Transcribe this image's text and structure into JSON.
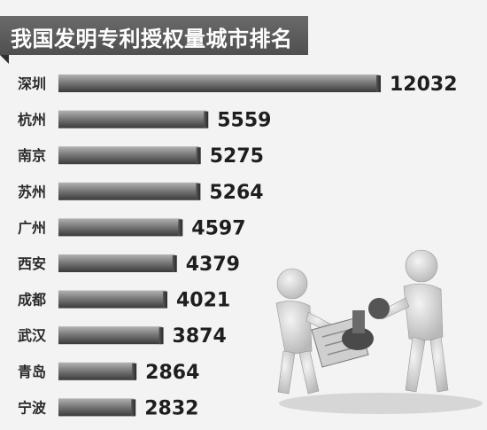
{
  "chart_data": {
    "type": "bar",
    "orientation": "horizontal",
    "title": "我国发明专利授权量城市排名",
    "categories": [
      "深圳",
      "杭州",
      "南京",
      "苏州",
      "广州",
      "西安",
      "成都",
      "武汉",
      "青岛",
      "宁波"
    ],
    "values": [
      12032,
      5559,
      5275,
      5264,
      4597,
      4379,
      4021,
      3874,
      2864,
      2832
    ],
    "data_labels": [
      "12032",
      "5559",
      "5275",
      "5264",
      "4597",
      "4379",
      "4021",
      "3874",
      "2864",
      "2832"
    ],
    "xlabel": "",
    "ylabel": "",
    "grid": false,
    "legend": "none",
    "colors": {
      "bar_top": "#9a9a9a",
      "bar_bottom": "#3f3f3f",
      "title_bg": "#5c5c5c"
    }
  }
}
